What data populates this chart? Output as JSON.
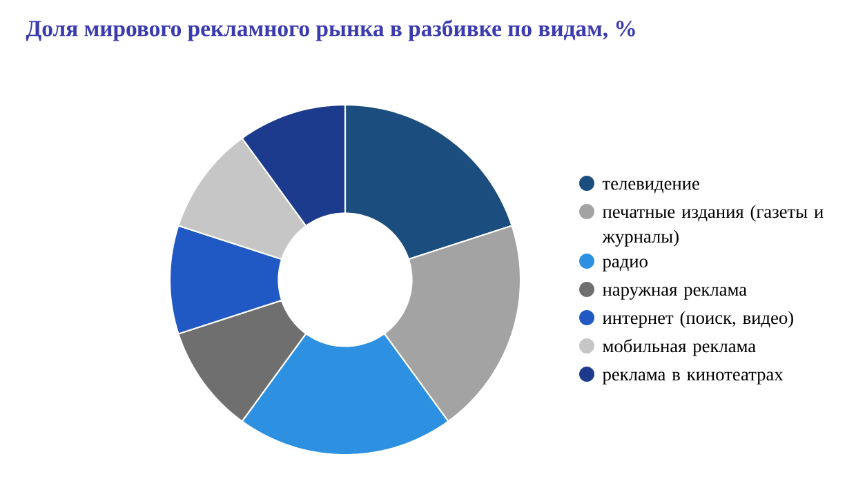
{
  "chart_data": {
    "type": "donut",
    "title": "Доля мирового рекламного рынка в разбивке по видам, %",
    "categories": [
      "телевидение",
      "печатные издания (газеты и журналы)",
      "радио",
      "наружная реклама",
      "интернет (поиск, видео)",
      "мобильная реклама",
      "реклама в кинотеатрах"
    ],
    "values": [
      20,
      20,
      20,
      10,
      10,
      10,
      10
    ],
    "colors": [
      "#1b4d7e",
      "#a3a3a3",
      "#2e90e0",
      "#6f6f6f",
      "#2159c4",
      "#c6c6c6",
      "#1c3b8c"
    ],
    "legend": "right"
  }
}
